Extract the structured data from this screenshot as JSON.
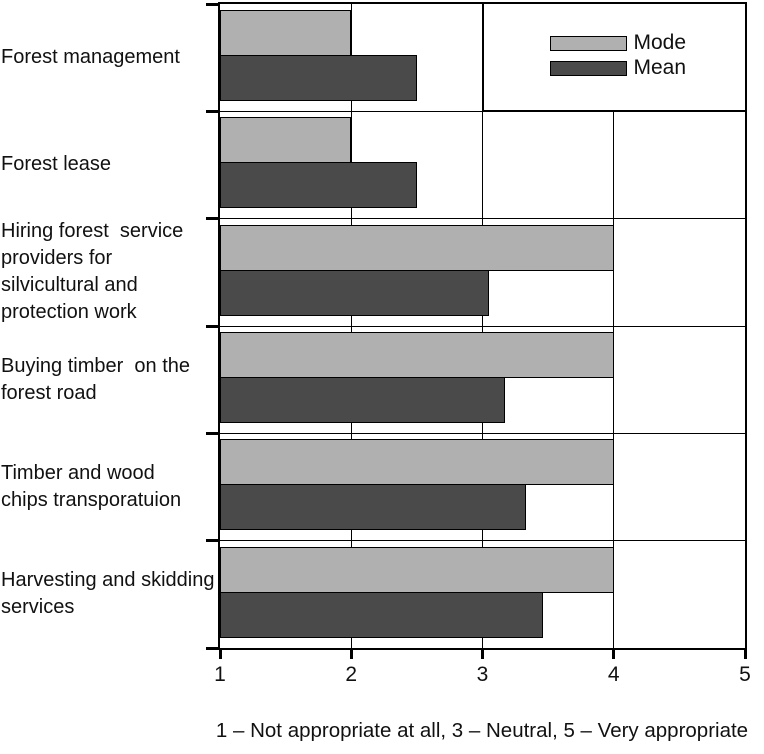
{
  "chart_data": {
    "type": "bar",
    "orientation": "horizontal",
    "categories": [
      "Forest management",
      "Forest lease",
      "Hiring forest  service\nproviders for\nsilvicultural and\nprotection work",
      "Buying timber  on the\nforest road",
      "Timber and wood\nchips transporatuion",
      "Harvesting and skidding\nservices"
    ],
    "series": [
      {
        "name": "Mode",
        "color": "#b0b0b0",
        "values": [
          2,
          2,
          4,
          4,
          4,
          4
        ]
      },
      {
        "name": "Mean",
        "color": "#4a4a4a",
        "values": [
          2.5,
          2.5,
          3.05,
          3.17,
          3.33,
          3.46
        ]
      }
    ],
    "x_axis": {
      "min": 1,
      "max": 5,
      "ticks": [
        1,
        2,
        3,
        4,
        5
      ]
    },
    "gridlines_at": [
      2,
      3,
      4
    ],
    "legend_position": "top-right",
    "grid": "vertical-lines-and-row-separators",
    "caption": "1 – Not appropriate at all, 3 – Neutral, 5 – Very appropriate",
    "colors": {
      "mode_bar": "#b0b0b0",
      "mean_bar": "#4a4a4a",
      "axis": "#000000",
      "background": "#ffffff"
    }
  }
}
